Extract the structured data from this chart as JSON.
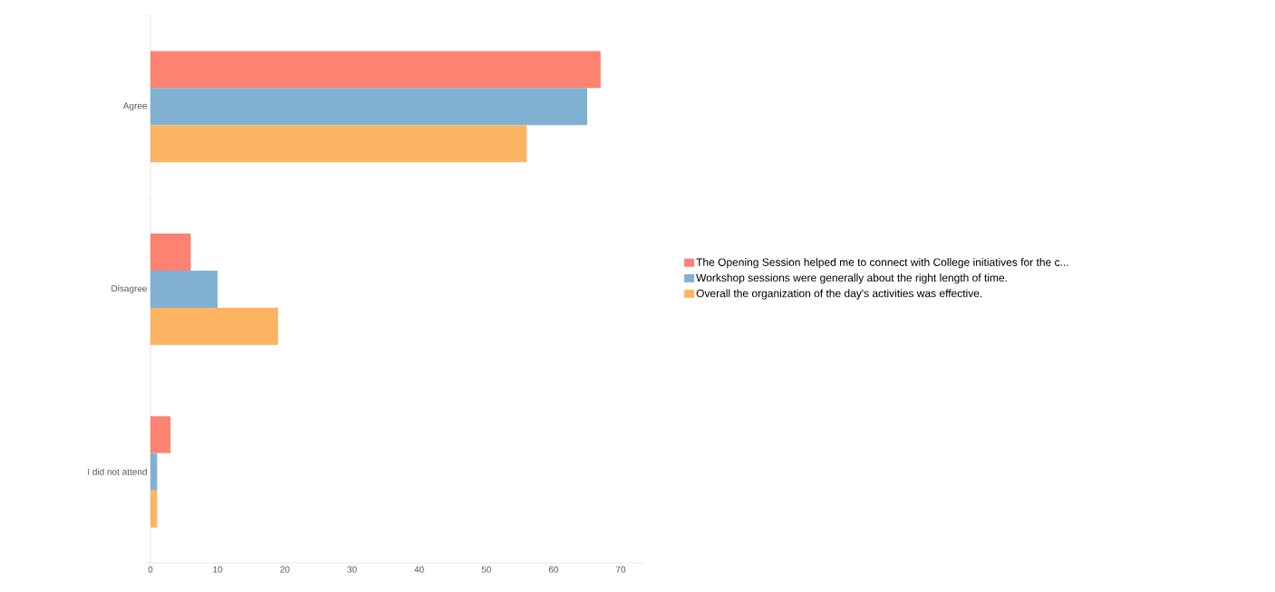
{
  "chart_data": {
    "type": "bar",
    "orientation": "horizontal",
    "categories": [
      "Agree",
      "Disagree",
      "I did not attend"
    ],
    "series": [
      {
        "name": "The Opening Session helped me to connect with College initiatives for the c...",
        "color": "#fc8272",
        "values": [
          67,
          6,
          3
        ]
      },
      {
        "name": "Workshop sessions were generally about the right length of time.",
        "color": "#80b1d3",
        "values": [
          65,
          10,
          1
        ]
      },
      {
        "name": "Overall the organization of the day's activities was effective.",
        "color": "#fdb462",
        "values": [
          56,
          19,
          1
        ]
      }
    ],
    "xlim": [
      0,
      73.5
    ],
    "xticks": [
      0,
      10,
      20,
      30,
      40,
      50,
      60,
      70
    ],
    "legend": "right",
    "grid": false
  }
}
